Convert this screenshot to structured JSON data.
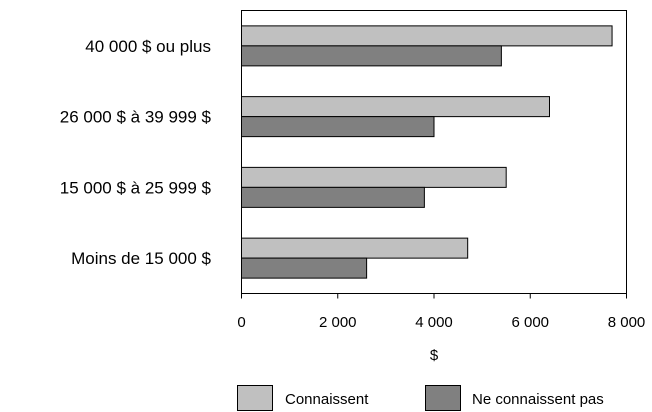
{
  "chart_data": {
    "type": "bar",
    "orientation": "horizontal",
    "categories": [
      "40 000 $ ou plus",
      "26 000 $ à 39 999 $",
      "15 000 $ à 25 999 $",
      "Moins de 15 000 $"
    ],
    "series": [
      {
        "name": "Connaissent",
        "values": [
          7700,
          6400,
          5500,
          4700
        ],
        "color": "#c0c0c0"
      },
      {
        "name": "Ne connaissent pas",
        "values": [
          5400,
          4000,
          3800,
          2600
        ],
        "color": "#808080"
      }
    ],
    "title": "",
    "xlabel": "$",
    "ylabel": "",
    "xlim": [
      0,
      8000
    ],
    "x_ticks": [
      0,
      2000,
      4000,
      6000,
      8000
    ],
    "x_tick_labels": [
      "0",
      "2 000",
      "4 000",
      "6 000",
      "8 000"
    ],
    "grid": false,
    "legend": {
      "placement": "bottom"
    }
  }
}
